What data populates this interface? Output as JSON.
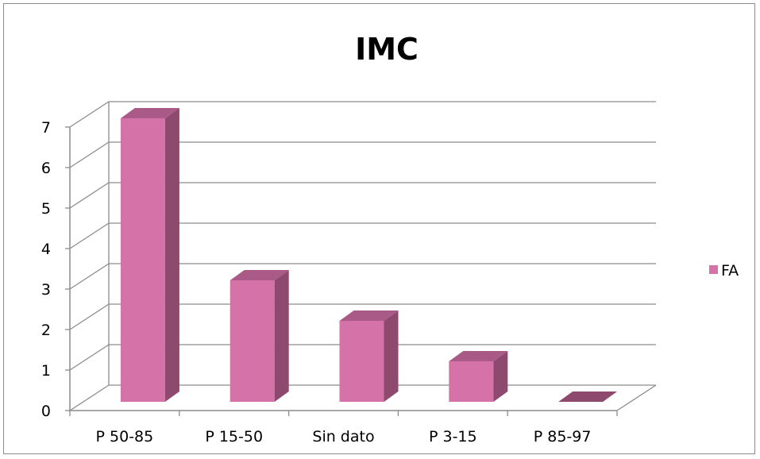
{
  "chart_data": {
    "type": "bar",
    "title": "IMC",
    "categories": [
      "P 50-85",
      "P 15-50",
      "Sin dato",
      "P 3-15",
      "P 85-97"
    ],
    "series": [
      {
        "name": "FA",
        "values": [
          7,
          3,
          2,
          1,
          0
        ]
      }
    ],
    "ylim": [
      0,
      7
    ],
    "y_ticks": [
      "0",
      "1",
      "2",
      "3",
      "4",
      "5",
      "6",
      "7"
    ],
    "grid": true,
    "legend": "right",
    "style": "3d-column",
    "colors": {
      "bar_front": "#d572a8",
      "bar_side": "#8e4a6e",
      "bar_top": "#aa5a86",
      "grid": "#8c8c8c",
      "axis": "#8c8c8c"
    }
  }
}
